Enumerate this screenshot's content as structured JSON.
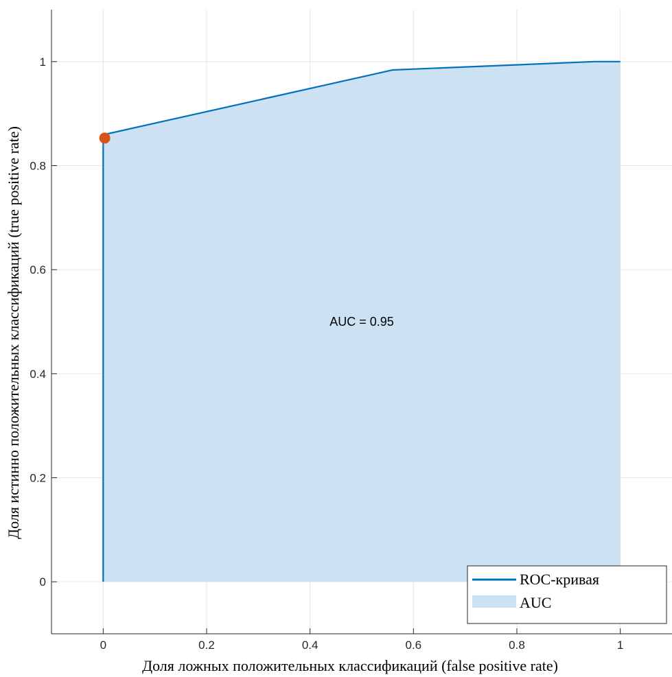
{
  "chart_data": {
    "type": "area",
    "xlabel": "Доля ложных положительных классификаций (false positive rate)",
    "ylabel": "Доля истинно положительных классификаций (true positive rate)",
    "xlim": [
      -0.1,
      1.1
    ],
    "ylim": [
      -0.1,
      1.1
    ],
    "xticks": [
      0,
      0.2,
      0.4,
      0.6,
      0.8,
      1
    ],
    "yticks": [
      0,
      0.2,
      0.4,
      0.6,
      0.8,
      1
    ],
    "xtick_labels": [
      "0",
      "0.2",
      "0.4",
      "0.6",
      "0.8",
      "1"
    ],
    "ytick_labels": [
      "0",
      "0.2",
      "0.4",
      "0.6",
      "0.8",
      "1"
    ],
    "grid": true,
    "series": [
      {
        "name": "ROC-кривая",
        "kind": "line",
        "color": "#0072BD",
        "x": [
          0,
          0,
          0,
          0.003,
          0.56,
          0.95,
          1
        ],
        "y": [
          0,
          0.8,
          0.85,
          0.86,
          0.984,
          1.0,
          1.0
        ]
      },
      {
        "name": "AUC",
        "kind": "area",
        "color": "#CCE1F1"
      }
    ],
    "highlight_point": {
      "x": 0.003,
      "y": 0.853,
      "color": "#D95319"
    },
    "annotation": {
      "text": "AUC = 0.95",
      "x": 0.5,
      "y": 0.5
    },
    "legend_position": "bottom-right"
  }
}
